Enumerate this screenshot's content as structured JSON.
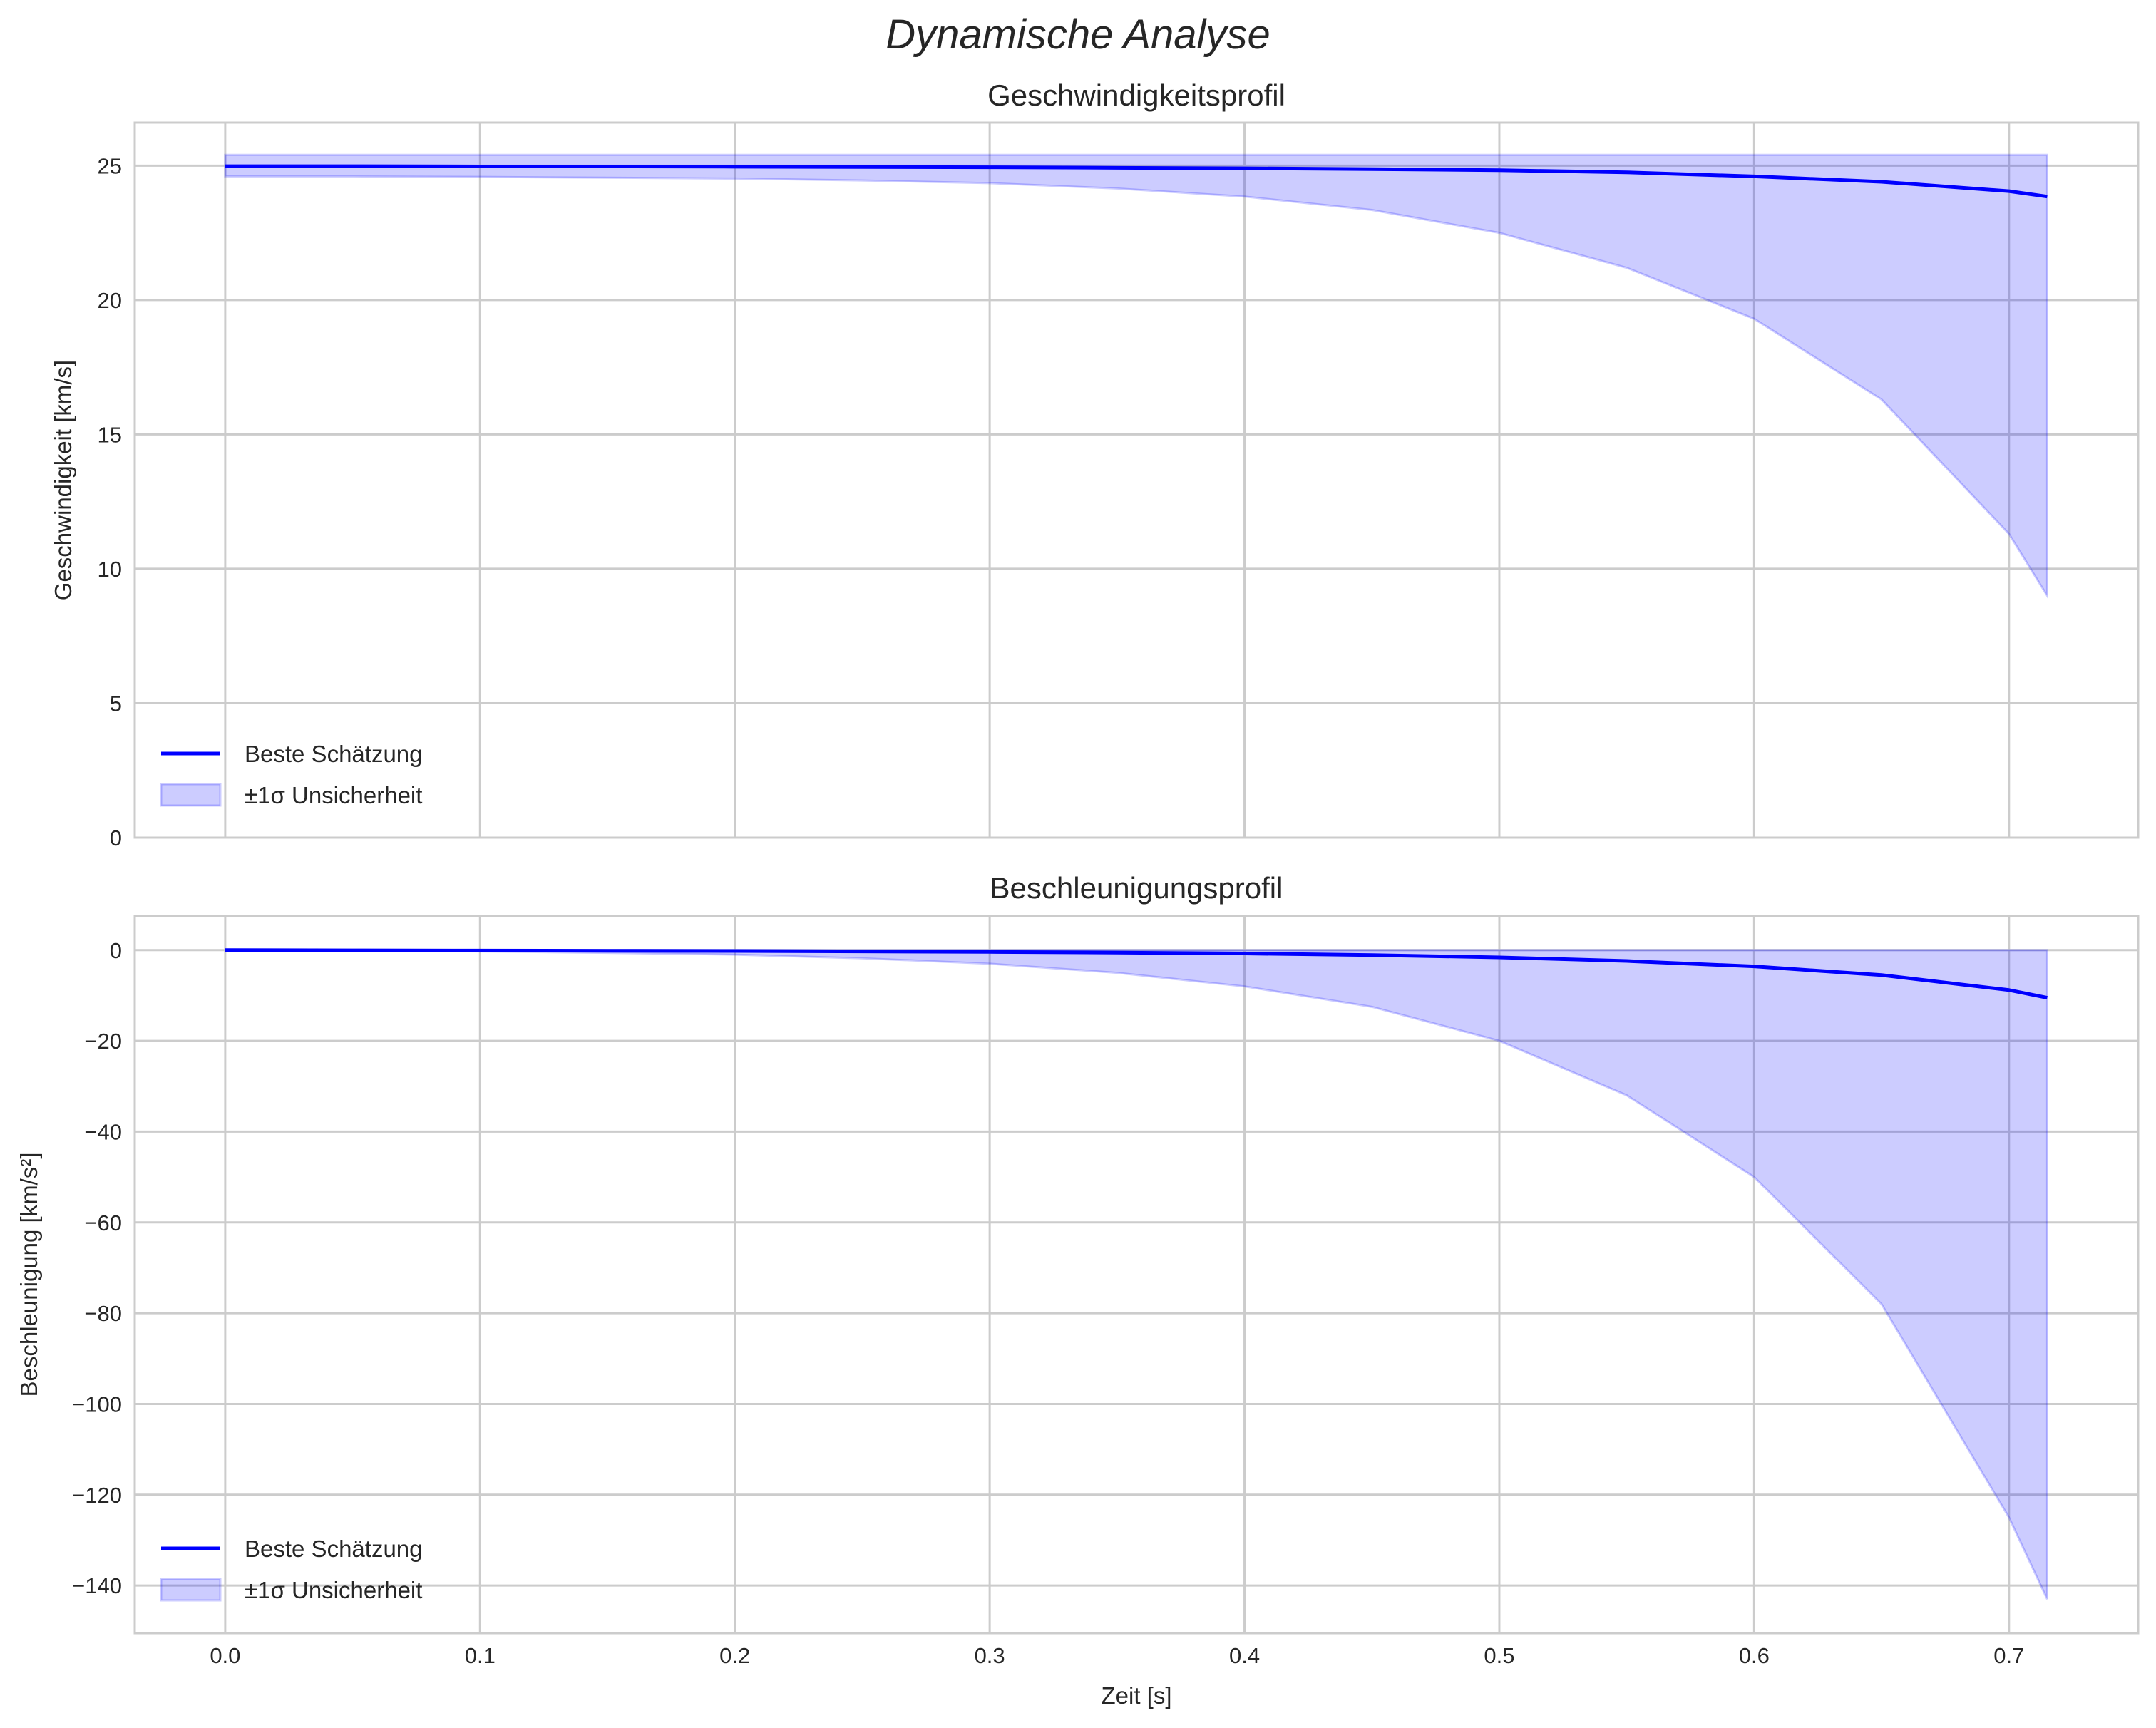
{
  "figure_title": "Dynamische Analyse",
  "colors": {
    "line": "#0000ff",
    "band": "#0000ff",
    "grid": "#cccccc"
  },
  "chart_data": [
    {
      "type": "line",
      "title": "Geschwindigkeitsprofil",
      "xlabel": "",
      "ylabel": "Geschwindigkeit [km/s]",
      "xlim": [
        -0.0355,
        0.7507
      ],
      "ylim": [
        0,
        26.6
      ],
      "grid": true,
      "legend_position": "lower-left",
      "xticks": [
        0.0,
        0.1,
        0.2,
        0.3,
        0.4,
        0.5,
        0.6,
        0.7
      ],
      "yticks": [
        0,
        5,
        10,
        15,
        20,
        25
      ],
      "ytick_labels": [
        "0",
        "5",
        "10",
        "15",
        "20",
        "25"
      ],
      "x": [
        0,
        0.05,
        0.1,
        0.15,
        0.2,
        0.25,
        0.3,
        0.35,
        0.4,
        0.45,
        0.5,
        0.55,
        0.6,
        0.65,
        0.7,
        0.715
      ],
      "series": [
        {
          "name": "Beste Schätzung",
          "values": [
            24.98,
            24.98,
            24.97,
            24.97,
            24.96,
            24.95,
            24.94,
            24.92,
            24.9,
            24.87,
            24.83,
            24.75,
            24.6,
            24.4,
            24.05,
            23.85
          ]
        }
      ],
      "band": {
        "name": "±1σ Unsicherheit",
        "lower": [
          24.6,
          24.6,
          24.58,
          24.55,
          24.52,
          24.45,
          24.35,
          24.15,
          23.85,
          23.35,
          22.5,
          21.2,
          19.3,
          16.3,
          11.3,
          9.0
        ],
        "upper": [
          25.4,
          25.4,
          25.4,
          25.4,
          25.4,
          25.4,
          25.4,
          25.4,
          25.4,
          25.4,
          25.4,
          25.4,
          25.4,
          25.4,
          25.4,
          25.4
        ]
      }
    },
    {
      "type": "line",
      "title": "Beschleunigungsprofil",
      "xlabel": "Zeit [s]",
      "ylabel": "Beschleunigung [km/s²]",
      "xlim": [
        -0.0355,
        0.7507
      ],
      "ylim": [
        -150.5,
        7.5
      ],
      "grid": true,
      "legend_position": "lower-left",
      "xticks": [
        0.0,
        0.1,
        0.2,
        0.3,
        0.4,
        0.5,
        0.6,
        0.7
      ],
      "xtick_labels": [
        "0.0",
        "0.1",
        "0.2",
        "0.3",
        "0.4",
        "0.5",
        "0.6",
        "0.7"
      ],
      "yticks": [
        0,
        -20,
        -40,
        -60,
        -80,
        -100,
        -120,
        -140
      ],
      "ytick_labels": [
        "0",
        "−20",
        "−40",
        "−60",
        "−80",
        "−100",
        "−120",
        "−140"
      ],
      "x": [
        0,
        0.05,
        0.1,
        0.15,
        0.2,
        0.25,
        0.3,
        0.35,
        0.4,
        0.45,
        0.5,
        0.55,
        0.6,
        0.65,
        0.7,
        0.715
      ],
      "series": [
        {
          "name": "Beste Schätzung",
          "values": [
            0,
            -0.05,
            -0.1,
            -0.15,
            -0.2,
            -0.3,
            -0.4,
            -0.55,
            -0.75,
            -1.1,
            -1.6,
            -2.4,
            -3.6,
            -5.5,
            -8.8,
            -10.5
          ]
        }
      ],
      "band": {
        "name": "±1σ Unsicherheit",
        "lower": [
          0,
          -0.1,
          -0.3,
          -0.6,
          -1.0,
          -1.8,
          -3.0,
          -5.0,
          -8.0,
          -12.5,
          -20,
          -32,
          -50,
          -78,
          -125,
          -143
        ],
        "upper": [
          0,
          0,
          0,
          0,
          0,
          0,
          0,
          0,
          0,
          0,
          0,
          0,
          0,
          0,
          0,
          0
        ]
      }
    }
  ]
}
